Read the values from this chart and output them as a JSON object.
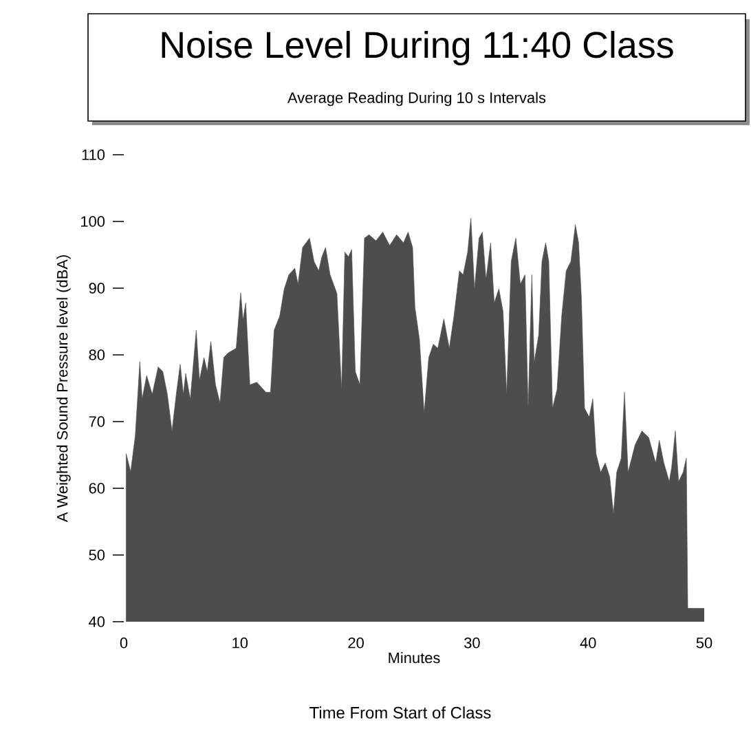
{
  "chart_data": {
    "type": "area",
    "title": "Noise Level During 11:40 Class",
    "subtitle": "Average Reading During 10 s Intervals",
    "xlabel": "Minutes",
    "ylabel": "A Weighted Sound Pressure level (dBA)",
    "annotations": [
      "Time From Start of Class"
    ],
    "xlim": [
      0,
      50
    ],
    "ylim": [
      40,
      110
    ],
    "xticks": [
      0,
      10,
      20,
      30,
      40,
      50
    ],
    "yticks": [
      40,
      50,
      60,
      70,
      80,
      90,
      100,
      110
    ],
    "series": [
      {
        "color": "#4d4d4d",
        "x": [
          0.2,
          0.59,
          0.99,
          1.38,
          1.58,
          1.97,
          2.45,
          2.96,
          3.36,
          3.75,
          4.15,
          4.54,
          4.86,
          5.13,
          5.33,
          5.73,
          6.24,
          6.52,
          6.91,
          7.19,
          7.5,
          7.9,
          8.29,
          8.61,
          9.0,
          9.68,
          10.07,
          10.27,
          10.5,
          10.86,
          11.45,
          12.24,
          12.64,
          12.95,
          13.43,
          13.82,
          14.22,
          14.73,
          15.01,
          15.4,
          16.0,
          16.39,
          16.79,
          17.06,
          17.38,
          17.77,
          18.36,
          18.76,
          19.04,
          19.35,
          19.63,
          19.94,
          20.34,
          20.73,
          21.13,
          21.72,
          22.31,
          22.9,
          23.5,
          24.09,
          24.49,
          24.88,
          25.08,
          25.47,
          25.87,
          26.27,
          26.66,
          27.05,
          27.57,
          28.04,
          28.44,
          28.91,
          29.23,
          29.62,
          29.9,
          30.21,
          30.6,
          30.89,
          31.2,
          31.6,
          31.91,
          32.31,
          32.67,
          32.98,
          33.37,
          33.77,
          34.16,
          34.56,
          34.83,
          35.15,
          35.35,
          35.74,
          36.02,
          36.34,
          36.61,
          36.93,
          37.32,
          37.72,
          38.11,
          38.51,
          38.9,
          39.18,
          39.42,
          39.69,
          40.09,
          40.4,
          40.68,
          41.08,
          41.47,
          41.86,
          42.18,
          42.46,
          42.85,
          43.13,
          43.44,
          44.04,
          44.63,
          45.22,
          45.82,
          46.13,
          46.52,
          46.99,
          47.19,
          47.51,
          47.79,
          48.18,
          48.46,
          48.58,
          50
        ],
        "values": [
          65.2,
          62.5,
          67.9,
          79,
          73.4,
          76.9,
          74.1,
          78.2,
          77.5,
          74.1,
          68.6,
          74.4,
          78.6,
          74.1,
          77.2,
          73.4,
          83.7,
          76.2,
          79.6,
          77.5,
          82,
          75.5,
          72.8,
          79.6,
          80.3,
          81,
          89.3,
          85.2,
          87.8,
          75.5,
          75.9,
          74.4,
          74.4,
          83.7,
          85.8,
          89.9,
          92,
          93,
          90.6,
          96.1,
          97.5,
          94,
          92.6,
          94.7,
          96.1,
          92,
          89.2,
          74.8,
          95.4,
          94.7,
          95.8,
          77.5,
          75.5,
          97.5,
          98,
          97.1,
          98.4,
          96.4,
          98,
          96.8,
          98.4,
          96.1,
          87.1,
          82.3,
          71.3,
          79.6,
          81.6,
          81,
          85.4,
          81,
          85.8,
          92.6,
          92,
          95.4,
          100.5,
          89.9,
          97.5,
          98.4,
          91.3,
          96.8,
          87.8,
          89.9,
          86.5,
          74.1,
          94,
          97.5,
          90.6,
          92,
          72,
          92,
          78.9,
          83,
          94,
          96.8,
          94,
          72,
          74.8,
          85.8,
          92.6,
          94,
          99.5,
          96.8,
          88.5,
          72,
          70.7,
          73.4,
          65.2,
          62.4,
          63.8,
          61.7,
          56.2,
          62.4,
          64.5,
          74.4,
          62.4,
          66.5,
          68.6,
          67.6,
          63.8,
          67.2,
          63.8,
          61,
          63.1,
          68.6,
          61,
          62.4,
          64.5,
          42,
          42
        ]
      }
    ]
  }
}
